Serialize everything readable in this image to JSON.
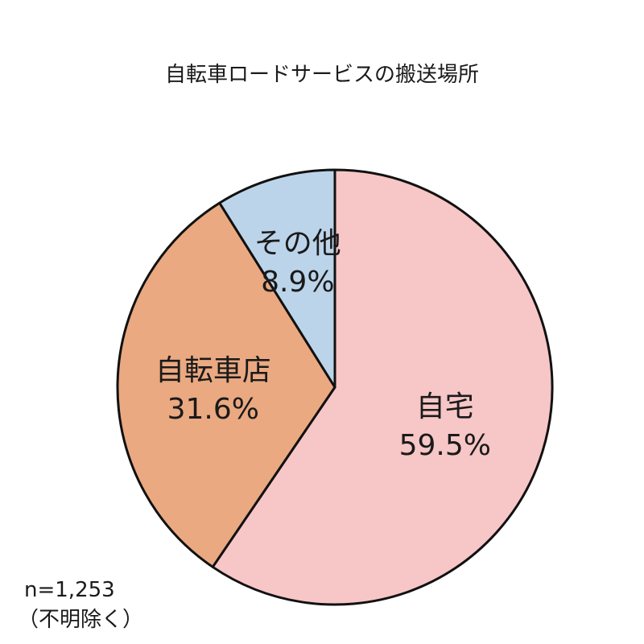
{
  "chart_data": {
    "type": "pie",
    "title": "自転車ロードサービスの搬送場所",
    "slices": [
      {
        "label": "自宅",
        "value": 59.5,
        "value_label": "59.5%",
        "color": "#f7c6c7"
      },
      {
        "label": "自転車店",
        "value": 31.6,
        "value_label": "31.6%",
        "color": "#eaa981"
      },
      {
        "label": "その他",
        "value": 8.9,
        "value_label": "8.9%",
        "color": "#bcd4ea"
      }
    ],
    "start": "12 o'clock",
    "direction": "clockwise",
    "stroke_color": "#111111"
  },
  "notes": {
    "sample_size": "n=1,253",
    "exclusion": "（不明除く）"
  }
}
